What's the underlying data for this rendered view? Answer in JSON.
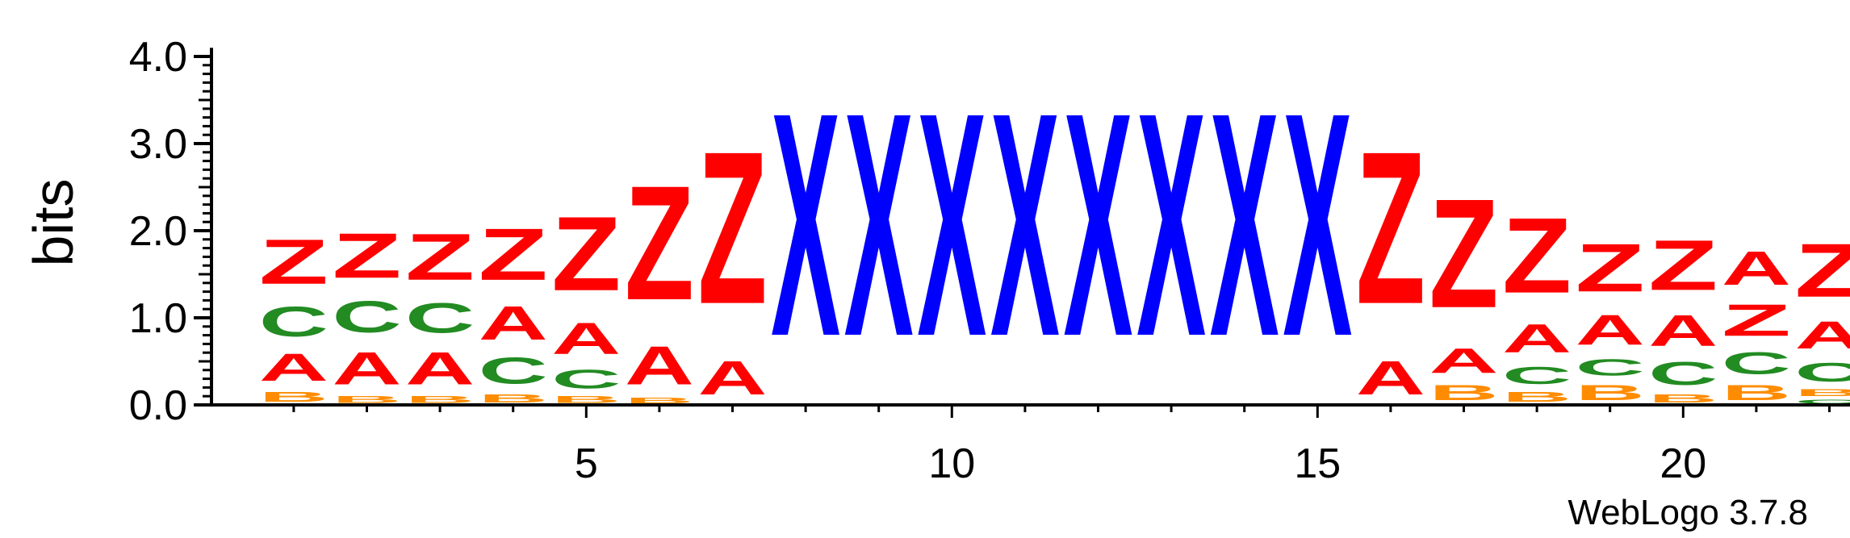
{
  "chart_data": {
    "type": "sequence-logo",
    "ylabel": "bits",
    "ylim": [
      0,
      4
    ],
    "yticks": [
      "0.0",
      "1.0",
      "2.0",
      "3.0",
      "4.0"
    ],
    "xticks": [
      5,
      10,
      15,
      20
    ],
    "positions": [
      {
        "pos": 1,
        "stack": [
          {
            "l": "B",
            "h": 0.18
          },
          {
            "l": "A",
            "h": 0.5
          },
          {
            "l": "C",
            "h": 0.55
          },
          {
            "l": "Z",
            "h": 0.82
          }
        ]
      },
      {
        "pos": 2,
        "stack": [
          {
            "l": "B",
            "h": 0.12
          },
          {
            "l": "A",
            "h": 0.6
          },
          {
            "l": "C",
            "h": 0.58
          },
          {
            "l": "Z",
            "h": 0.82
          }
        ]
      },
      {
        "pos": 3,
        "stack": [
          {
            "l": "B",
            "h": 0.12
          },
          {
            "l": "A",
            "h": 0.6
          },
          {
            "l": "C",
            "h": 0.55
          },
          {
            "l": "Z",
            "h": 0.85
          }
        ]
      },
      {
        "pos": 4,
        "stack": [
          {
            "l": "B",
            "h": 0.15
          },
          {
            "l": "C",
            "h": 0.48
          },
          {
            "l": "A",
            "h": 0.62
          },
          {
            "l": "Z",
            "h": 0.95
          }
        ]
      },
      {
        "pos": 5,
        "stack": [
          {
            "l": "B",
            "h": 0.12
          },
          {
            "l": "C",
            "h": 0.35
          },
          {
            "l": "A",
            "h": 0.58
          },
          {
            "l": "Z",
            "h": 1.36
          }
        ]
      },
      {
        "pos": 6,
        "stack": [
          {
            "l": "B",
            "h": 0.1
          },
          {
            "l": "A",
            "h": 0.7
          },
          {
            "l": "Z",
            "h": 2.1
          }
        ]
      },
      {
        "pos": 7,
        "stack": [
          {
            "l": "A",
            "h": 0.62
          },
          {
            "l": "Z",
            "h": 2.8
          }
        ]
      },
      {
        "pos": 8,
        "stack": [
          {
            "l": "X",
            "h": 4.1
          }
        ]
      },
      {
        "pos": 9,
        "stack": [
          {
            "l": "X",
            "h": 4.1
          }
        ]
      },
      {
        "pos": 10,
        "stack": [
          {
            "l": "X",
            "h": 4.1
          }
        ]
      },
      {
        "pos": 11,
        "stack": [
          {
            "l": "X",
            "h": 4.1
          }
        ]
      },
      {
        "pos": 12,
        "stack": [
          {
            "l": "X",
            "h": 4.1
          }
        ]
      },
      {
        "pos": 13,
        "stack": [
          {
            "l": "X",
            "h": 4.1
          }
        ]
      },
      {
        "pos": 14,
        "stack": [
          {
            "l": "X",
            "h": 4.1
          }
        ]
      },
      {
        "pos": 15,
        "stack": [
          {
            "l": "X",
            "h": 4.1
          }
        ]
      },
      {
        "pos": 16,
        "stack": [
          {
            "l": "A",
            "h": 0.62
          },
          {
            "l": "Z",
            "h": 2.8
          }
        ]
      },
      {
        "pos": 17,
        "stack": [
          {
            "l": "B",
            "h": 0.28
          },
          {
            "l": "A",
            "h": 0.45
          },
          {
            "l": "Z",
            "h": 2.0
          }
        ]
      },
      {
        "pos": 18,
        "stack": [
          {
            "l": "B",
            "h": 0.18
          },
          {
            "l": "C",
            "h": 0.32
          },
          {
            "l": "A",
            "h": 0.52
          },
          {
            "l": "Z",
            "h": 1.38
          }
        ]
      },
      {
        "pos": 19,
        "stack": [
          {
            "l": "B",
            "h": 0.28
          },
          {
            "l": "C",
            "h": 0.3
          },
          {
            "l": "A",
            "h": 0.55
          },
          {
            "l": "Z",
            "h": 0.88
          }
        ]
      },
      {
        "pos": 20,
        "stack": [
          {
            "l": "B",
            "h": 0.15
          },
          {
            "l": "C",
            "h": 0.42
          },
          {
            "l": "A",
            "h": 0.57
          },
          {
            "l": "Z",
            "h": 0.92
          }
        ]
      },
      {
        "pos": 21,
        "stack": [
          {
            "l": "B",
            "h": 0.28
          },
          {
            "l": "C",
            "h": 0.4
          },
          {
            "l": "Z",
            "h": 0.58
          },
          {
            "l": "A",
            "h": 0.62
          }
        ]
      },
      {
        "pos": 22,
        "stack": [
          {
            "l": "C",
            "h": 0.08
          },
          {
            "l": "B",
            "h": 0.12
          },
          {
            "l": "C",
            "h": 0.35
          },
          {
            "l": "A",
            "h": 0.5
          },
          {
            "l": "Z",
            "h": 0.98
          }
        ]
      }
    ],
    "colors": {
      "A": "#ff0000",
      "Z": "#ff0000",
      "C": "#228b22",
      "B": "#ff8c00",
      "X": "#0000ff"
    }
  },
  "footer": {
    "credit": "WebLogo 3.7.8"
  }
}
